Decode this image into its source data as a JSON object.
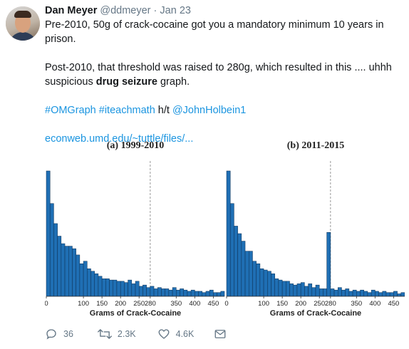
{
  "tweet": {
    "author_name": "Dan Meyer",
    "handle": "@ddmeyer",
    "separator": "·",
    "date": "Jan 23",
    "line1": "Pre-2010, 50g of crack-cocaine got you a mandatory minimum 10 years in prison.",
    "line2": "Post-2010, that threshold was raised to 280g, which resulted in this .... uhhh",
    "line3_pre": "suspicious ",
    "line3_bold": "drug seizure",
    "line3_post": " graph.",
    "hashtag1": "#OMGraph",
    "hashtag2": "#iteachmath",
    "ht_text": "h/t",
    "mention": "@JohnHolbein1",
    "url": "econweb.umd.edu/~tuttle/files/..."
  },
  "actions": {
    "replies": "36",
    "retweets": "2.3K",
    "likes": "4.6K"
  },
  "colors": {
    "link": "#1b95e0",
    "bar": "#1f6fb4",
    "muted": "#657786"
  },
  "icons": [
    "reply-icon",
    "retweet-icon",
    "like-icon",
    "message-icon"
  ],
  "chart_data": [
    {
      "type": "bar",
      "title": "(a) 1999-2010",
      "xlabel": "Grams of Crack-Cocaine",
      "ylabel": "",
      "xlim": [
        0,
        480
      ],
      "ylim": [
        0,
        100
      ],
      "grid": false,
      "reference_line": 280,
      "bin_width": 10,
      "bin_starts": [
        0,
        10,
        20,
        30,
        40,
        50,
        60,
        70,
        80,
        90,
        100,
        110,
        120,
        130,
        140,
        150,
        160,
        170,
        180,
        190,
        200,
        210,
        220,
        230,
        240,
        250,
        260,
        270,
        280,
        290,
        300,
        310,
        320,
        330,
        340,
        350,
        360,
        370,
        380,
        390,
        400,
        410,
        420,
        430,
        440,
        450,
        460,
        470
      ],
      "values": [
        100,
        74,
        58,
        48,
        42,
        40,
        40,
        38,
        33,
        26,
        28,
        22,
        20,
        18,
        16,
        14,
        14,
        13,
        13,
        12,
        12,
        11,
        13,
        10,
        12,
        8,
        9,
        7,
        8,
        6,
        7,
        6,
        6,
        5,
        7,
        5,
        6,
        5,
        4,
        5,
        4,
        4,
        3,
        4,
        5,
        3,
        3,
        4
      ],
      "x_ticks": [
        "0",
        "100",
        "150",
        "200",
        "250",
        "280",
        "350",
        "400",
        "450"
      ]
    },
    {
      "type": "bar",
      "title": "(b) 2011-2015",
      "xlabel": "Grams of Crack-Cocaine",
      "ylabel": "",
      "xlim": [
        0,
        480
      ],
      "ylim": [
        0,
        100
      ],
      "grid": false,
      "reference_line": 280,
      "bin_width": 10,
      "bin_starts": [
        0,
        10,
        20,
        30,
        40,
        50,
        60,
        70,
        80,
        90,
        100,
        110,
        120,
        130,
        140,
        150,
        160,
        170,
        180,
        190,
        200,
        210,
        220,
        230,
        240,
        250,
        260,
        270,
        280,
        290,
        300,
        310,
        320,
        330,
        340,
        350,
        360,
        370,
        380,
        390,
        400,
        410,
        420,
        430,
        440,
        450,
        460,
        470
      ],
      "values": [
        100,
        74,
        56,
        50,
        44,
        36,
        36,
        28,
        26,
        22,
        21,
        20,
        18,
        14,
        13,
        12,
        12,
        10,
        9,
        10,
        11,
        8,
        10,
        7,
        9,
        6,
        6,
        51,
        6,
        5,
        7,
        5,
        6,
        4,
        5,
        4,
        5,
        4,
        3,
        5,
        4,
        3,
        4,
        3,
        3,
        4,
        2,
        3
      ],
      "x_ticks": [
        "0",
        "100",
        "150",
        "200",
        "250",
        "280",
        "350",
        "400",
        "450"
      ]
    }
  ]
}
